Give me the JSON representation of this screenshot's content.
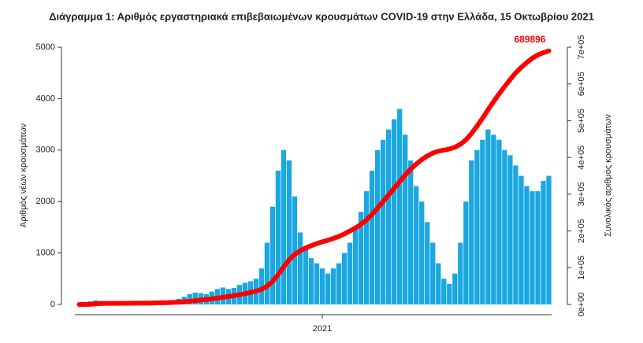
{
  "chart_data": {
    "type": "bar_line",
    "title": "Διάγραμμα 1: Αριθμός εργαστηριακά επιβεβαιωμένων κρουσμάτων COVID-19 στην Ελλάδα, 15 Οκτωβρίου 2021",
    "y_label": "Αριθμός νέων κρουσμάτων",
    "y2_label": "Συνολικός αριθμός κρουσμάτων",
    "categories": [
      null,
      null,
      null,
      null,
      null,
      null,
      null,
      null,
      null,
      null,
      null,
      null,
      null,
      null,
      null,
      null,
      null,
      null,
      null,
      null,
      null,
      null,
      null,
      null,
      null,
      null,
      null,
      null,
      null,
      null,
      null,
      null,
      null,
      null,
      null,
      null,
      null,
      null,
      null,
      null,
      null,
      null,
      null,
      null,
      "2021",
      null,
      null,
      null,
      null,
      null,
      null,
      null,
      null,
      null,
      null,
      null,
      null,
      null,
      null,
      null,
      null,
      null,
      null,
      null,
      null,
      null,
      null,
      null,
      null,
      null,
      null,
      null,
      null,
      null,
      null,
      null,
      null,
      null,
      null,
      null,
      null,
      null,
      null,
      null,
      null,
      null
    ],
    "series": [
      {
        "color": "#1aa7e2",
        "values": [
          5,
          20,
          60,
          80,
          70,
          40,
          20,
          15,
          10,
          10,
          15,
          20,
          25,
          30,
          40,
          50,
          60,
          80,
          110,
          150,
          200,
          230,
          220,
          200,
          250,
          300,
          330,
          300,
          320,
          380,
          420,
          450,
          500,
          700,
          1200,
          1900,
          2600,
          3000,
          2800,
          2100,
          1400,
          1100,
          900,
          800,
          700,
          600,
          700,
          800,
          1000,
          1200,
          1500,
          1800,
          2200,
          2600,
          3000,
          3200,
          3400,
          3600,
          3800,
          3300,
          2800,
          2300,
          2000,
          1600,
          1200,
          800,
          500,
          400,
          600,
          1200,
          2000,
          2800,
          3000,
          3200,
          3400,
          3300,
          3200,
          3000,
          2900,
          2700,
          2500,
          2300,
          2200,
          2200,
          2400,
          2500
        ]
      },
      {
        "color": "#ff0000",
        "axis": "y2",
        "values": [
          0,
          100,
          500,
          1500,
          2500,
          2900,
          3000,
          3100,
          3200,
          3300,
          3400,
          3500,
          3700,
          3900,
          4200,
          4500,
          5000,
          5500,
          6300,
          7300,
          8700,
          10300,
          11900,
          13300,
          15100,
          17200,
          19500,
          21600,
          23800,
          26500,
          29400,
          32600,
          36100,
          41000,
          49400,
          62700,
          80900,
          101900,
          121500,
          136200,
          146000,
          153700,
          160000,
          165600,
          170500,
          174700,
          179600,
          185200,
          192200,
          200000,
          208000,
          218000,
          230000,
          245000,
          262000,
          280000,
          298000,
          316000,
          334000,
          352000,
          368000,
          382000,
          394000,
          404000,
          412000,
          417000,
          420000,
          423000,
          428000,
          436000,
          448000,
          465000,
          485000,
          507000,
          530000,
          552000,
          573000,
          593000,
          612000,
          630000,
          645000,
          658000,
          670000,
          679000,
          685000,
          689896
        ]
      }
    ],
    "annotations": [
      {
        "text": "689896"
      }
    ],
    "ylim": [
      0,
      5000
    ],
    "yticks": [
      0,
      1000,
      2000,
      3000,
      4000,
      5000
    ],
    "y2lim": [
      0,
      700000
    ],
    "y2ticks": [
      {
        "value": 0,
        "label": "0e+00"
      },
      {
        "value": 100000,
        "label": "1e+05"
      },
      {
        "value": 200000,
        "label": "2e+05"
      },
      {
        "value": 300000,
        "label": "3e+05"
      },
      {
        "value": 400000,
        "label": "4e+05"
      },
      {
        "value": 500000,
        "label": "5e+05"
      },
      {
        "value": 600000,
        "label": "6e+05"
      },
      {
        "value": 700000,
        "label": "7e+05"
      }
    ]
  }
}
